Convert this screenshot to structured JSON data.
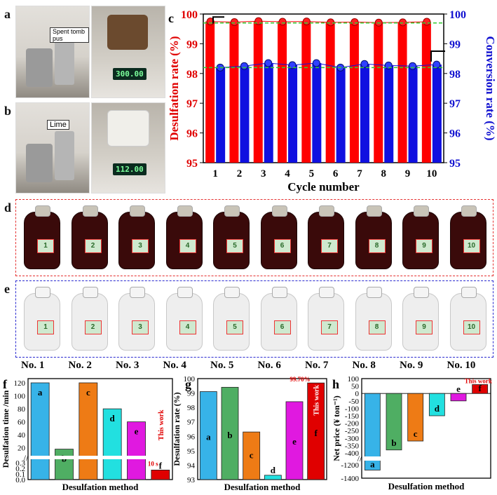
{
  "panels": {
    "a": "a",
    "b": "b",
    "c": "c",
    "d": "d",
    "e": "e",
    "f": "f",
    "g": "g",
    "h": "h"
  },
  "photo_a": {
    "tag": "Spent tomb pus",
    "scale": "300.00"
  },
  "photo_b": {
    "tag": "Lime",
    "scale": "112.00"
  },
  "bottles": {
    "d_labels": [
      "1",
      "2",
      "3",
      "4",
      "5",
      "6",
      "7",
      "8",
      "9",
      "10"
    ],
    "e_labels": [
      "1",
      "2",
      "3",
      "4",
      "5",
      "6",
      "7",
      "8",
      "9",
      "10"
    ],
    "d_color": "#3a0a0a",
    "e_color": "#eeeeee",
    "names": [
      "No. 1",
      "No. 2",
      "No. 3",
      "No. 4",
      "No. 5",
      "No. 6",
      "No. 7",
      "No. 8",
      "No. 9",
      "No. 10"
    ]
  },
  "chart_data": [
    {
      "id": "c",
      "type": "bar",
      "xlabel": "Cycle number",
      "ylabel": "Desulfation rate (%)",
      "y2label": "Conversion rate (%)",
      "categories": [
        "1",
        "2",
        "3",
        "4",
        "5",
        "6",
        "7",
        "8",
        "9",
        "10"
      ],
      "ylim": [
        95,
        100
      ],
      "y2lim": [
        95,
        100
      ],
      "yticks": [
        "95",
        "96",
        "97",
        "98",
        "99",
        "100"
      ],
      "series": [
        {
          "values": [
            99.75,
            99.73,
            99.76,
            99.74,
            99.75,
            99.72,
            99.73,
            99.71,
            99.72,
            99.74
          ],
          "color": "#ff0000"
        },
        {
          "values": [
            98.2,
            98.25,
            98.35,
            98.28,
            98.35,
            98.2,
            98.32,
            98.27,
            98.25,
            98.3
          ],
          "color": "#1010e0"
        }
      ],
      "reference_lines": [
        99.7,
        98.2
      ]
    },
    {
      "id": "f",
      "type": "bar",
      "xlabel": "Desulfation method",
      "ylabel": "Desulfation time /min",
      "categories": [
        "a",
        "b",
        "c",
        "d",
        "e",
        "f"
      ],
      "values": [
        120,
        18,
        120,
        80,
        60,
        0.17
      ],
      "colors": [
        "#37b3e8",
        "#4fae63",
        "#ee7b15",
        "#22e0e0",
        "#e019e0",
        "#e00000"
      ],
      "yticks_upper": [
        "20",
        "40",
        "60",
        "80",
        "100",
        "120"
      ],
      "yticks_lower": [
        "0.0",
        "0.1",
        "0.2",
        "0.3"
      ],
      "annotations": [
        "This work",
        "10 s"
      ]
    },
    {
      "id": "g",
      "type": "bar",
      "xlabel": "Desulfation method",
      "ylabel": "Desulfation rate (%)",
      "categories": [
        "a",
        "b",
        "c",
        "d",
        "e",
        "f"
      ],
      "values": [
        99.1,
        99.4,
        96.3,
        93.3,
        98.4,
        99.7
      ],
      "colors": [
        "#37b3e8",
        "#4fae63",
        "#ee7b15",
        "#22e0e0",
        "#e019e0",
        "#e00000"
      ],
      "ylim": [
        93,
        100
      ],
      "yticks": [
        "93",
        "94",
        "95",
        "96",
        "97",
        "98",
        "99",
        "100"
      ],
      "annotations": [
        "This work",
        "99.70%"
      ]
    },
    {
      "id": "h",
      "type": "bar",
      "xlabel": "Desulfation method",
      "ylabel": "Net price (¥ ton⁻¹)",
      "categories": [
        "a",
        "b",
        "c",
        "d",
        "e",
        "f"
      ],
      "values": [
        -1280,
        -380,
        -320,
        -150,
        -50,
        60
      ],
      "colors": [
        "#37b3e8",
        "#4fae63",
        "#ee7b15",
        "#22e0e0",
        "#e019e0",
        "#e00000"
      ],
      "yticks_upper": [
        "100",
        "50",
        "0",
        "-50",
        "-100",
        "-150",
        "-200",
        "-250",
        "-300",
        "-350",
        "-400"
      ],
      "yticks_lower": [
        "-1200",
        "-1400"
      ],
      "annotations": [
        "This work"
      ]
    }
  ]
}
